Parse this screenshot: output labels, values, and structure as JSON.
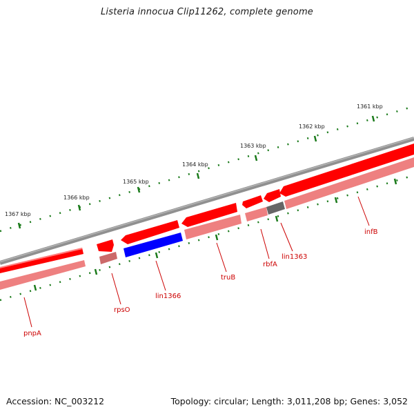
{
  "title": "Listeria innocua Clip11262, complete genome",
  "footer": {
    "accession": "Accession: NC_003212",
    "topology": "Topology: circular; Length: 3,011,208 bp; Genes: 3,052"
  },
  "ruler": {
    "labels": [
      "1367 kbp",
      "1366 kbp",
      "1365 kbp",
      "1364 kbp",
      "1363 kbp",
      "1362 kbp",
      "1361 kbp"
    ]
  },
  "genes": [
    {
      "name": "pnpA",
      "strand": "forward"
    },
    {
      "name": "rpsO",
      "strand": "forward"
    },
    {
      "name": "lin1366",
      "strand": "forward"
    },
    {
      "name": "truB",
      "strand": "forward"
    },
    {
      "name": "rbfA",
      "strand": "forward"
    },
    {
      "name": "lin1363",
      "strand": "forward"
    },
    {
      "name": "infB",
      "strand": "forward"
    }
  ],
  "colors": {
    "feature": "#ff0000",
    "feature_shadow": "#ee8080",
    "lin1366_band": "#0000ff",
    "lin1363_band": "#666666",
    "backbone": "#808080",
    "tick": "#1a7a1a",
    "label": "#cc0000",
    "ruler_text": "#222222"
  }
}
